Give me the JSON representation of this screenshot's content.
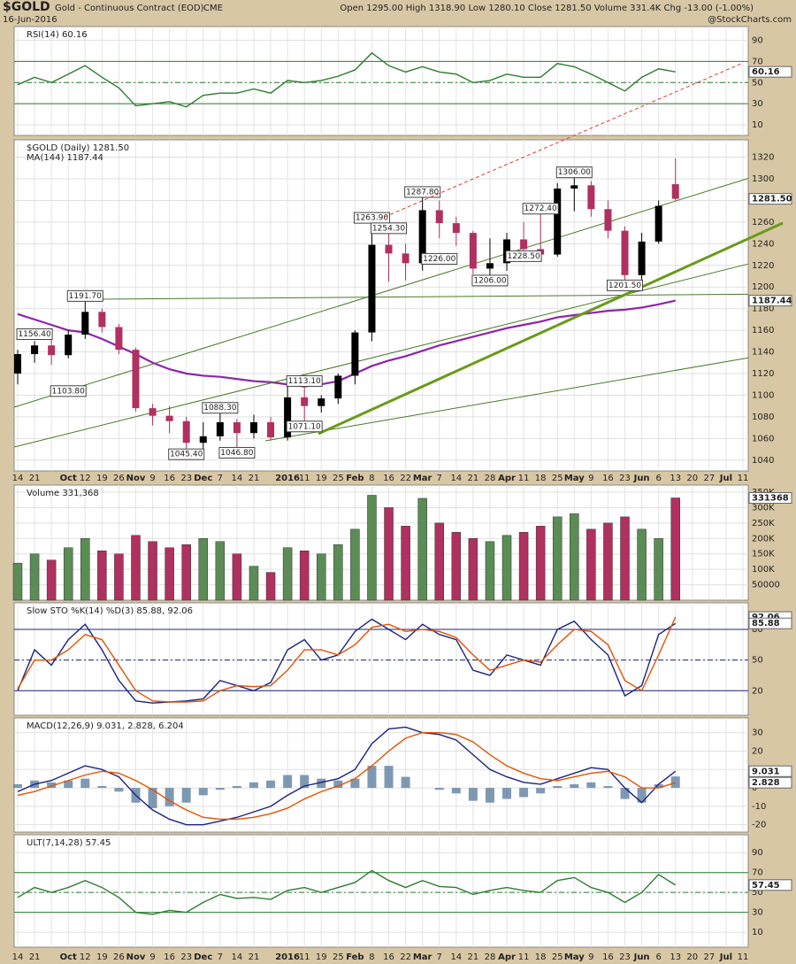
{
  "header": {
    "symbol": "$GOLD",
    "name": "Gold - Continuous Contract (EOD)",
    "exchange": "CME",
    "date": "16-Jun-2016",
    "quote": "Open 1295.00  High 1318.90  Low 1280.10  Close 1281.50  Volume 331.4K  Chg -13.00 (-1.00%)",
    "credit": "@StockCharts.com"
  },
  "categories": [
    "14",
    "21",
    null,
    "Oct",
    "12",
    "19",
    "26",
    "Nov",
    "9",
    "16",
    "23",
    "Dec",
    "7",
    "14",
    "21",
    null,
    "2016",
    "11",
    "19",
    "25",
    "Feb",
    "8",
    "16",
    "22",
    "Mar",
    "7",
    "14",
    "21",
    "28",
    "Apr",
    "11",
    "18",
    "25",
    "May",
    "9",
    "16",
    "23",
    "Jun",
    "6",
    "13",
    "20",
    "27",
    "Jul",
    "11"
  ],
  "chart_data": [
    {
      "type": "line",
      "legend": "RSI(14) 60.16",
      "flag": "60.16",
      "ylim": [
        0,
        103
      ],
      "yticks": [
        90,
        70,
        50,
        30,
        10
      ],
      "reference_lines": [
        70,
        50,
        30
      ],
      "series": [
        {
          "color": "#2e7d32",
          "values": [
            48,
            55,
            50,
            58,
            66,
            55,
            45,
            28,
            30,
            32,
            27,
            38,
            40,
            40,
            44,
            40,
            52,
            50,
            52,
            56,
            62,
            78,
            66,
            60,
            65,
            60,
            58,
            50,
            52,
            58,
            55,
            55,
            68,
            65,
            58,
            50,
            42,
            55,
            63,
            60.16,
            null,
            null,
            null,
            null
          ]
        }
      ]
    },
    {
      "type": "candlestick",
      "legend": "$GOLD (Daily) 1281.50",
      "flag": "1281.50",
      "ylim": [
        1030,
        1336
      ],
      "yticks": [
        1040,
        1060,
        1080,
        1100,
        1120,
        1140,
        1160,
        1180,
        1200,
        1220,
        1240,
        1260,
        1280,
        1300,
        1320
      ],
      "open": [
        1120,
        1138,
        1146,
        1137,
        1156,
        1177,
        1163,
        1142,
        1088,
        1081,
        1076,
        1056,
        1062,
        1075,
        1065,
        1075,
        1061,
        1098,
        1090,
        1097,
        1118,
        1158,
        1239,
        1231,
        1222,
        1271,
        1259,
        1250,
        1217,
        1222,
        1244,
        1235,
        1230,
        1291,
        1294,
        1272,
        1252,
        1211,
        1242,
        1295,
        null,
        null,
        null,
        null
      ],
      "high": [
        1142,
        1150,
        1152,
        1160,
        1191.7,
        1180,
        1166,
        1144,
        1092,
        1090,
        1080,
        1075,
        1088.3,
        1078,
        1082,
        1080,
        1112,
        1113.1,
        1100,
        1120,
        1160,
        1263.9,
        1254.3,
        1240,
        1287.8,
        1280,
        1265,
        1252,
        1245,
        1250,
        1260,
        1272.4,
        1296,
        1306,
        1298,
        1280,
        1256,
        1250,
        1280,
        1318.9,
        null,
        null,
        null,
        null
      ],
      "low": [
        1110,
        1130,
        1128,
        1134,
        1152,
        1158,
        1138,
        1085,
        1072,
        1065,
        1045.4,
        1050,
        1058,
        1046.8,
        1060,
        1058,
        1058,
        1071.1,
        1084,
        1092,
        1110,
        1150,
        1205,
        1206,
        1215,
        1245,
        1238,
        1212,
        1208,
        1215,
        1228.5,
        1226,
        1228,
        1270,
        1265,
        1245,
        1201.5,
        1205,
        1240,
        1280.1,
        null,
        null,
        null,
        null
      ],
      "close": [
        1138,
        1146,
        1137,
        1156,
        1177,
        1163,
        1142,
        1088,
        1081,
        1076,
        1056,
        1062,
        1075,
        1065,
        1075,
        1061,
        1098,
        1090,
        1097,
        1118,
        1158,
        1239,
        1231,
        1222,
        1271,
        1259,
        1250,
        1217,
        1222,
        1244,
        1235,
        1230,
        1291,
        1294,
        1272,
        1252,
        1211,
        1242,
        1275,
        1281.5,
        null,
        null,
        null,
        null
      ],
      "overlay": {
        "name": "MA(144) 1187.44",
        "flag": "1187.44",
        "color": "#8e24aa",
        "values": [
          1175,
          1170,
          1165,
          1160,
          1158,
          1152,
          1145,
          1138,
          1130,
          1124,
          1120,
          1118,
          1117,
          1115,
          1113,
          1112,
          1110,
          1108,
          1110,
          1113,
          1120,
          1127,
          1132,
          1136,
          1141,
          1146,
          1150,
          1154,
          1158,
          1162,
          1165,
          1168,
          1172,
          1174,
          1176,
          1178,
          1179,
          1181,
          1184,
          1187.44,
          null,
          null,
          null,
          null
        ]
      },
      "annotations": [
        {
          "value": 1156.4,
          "label": "1156.40"
        },
        {
          "value": 1103.8,
          "label": "1103.80"
        },
        {
          "value": 1191.7,
          "label": "1191.70"
        },
        {
          "value": 1045.4,
          "label": "1045.40"
        },
        {
          "value": 1088.3,
          "label": "1088.30"
        },
        {
          "value": 1046.8,
          "label": "1046.80"
        },
        {
          "value": 1113.1,
          "label": "1113.10"
        },
        {
          "value": 1071.1,
          "label": "1071.10"
        },
        {
          "value": 1263.9,
          "label": "1263.90"
        },
        {
          "value": 1254.3,
          "label": "1254.30"
        },
        {
          "value": 1287.8,
          "label": "1287.80"
        },
        {
          "value": 1226,
          "label": "1226.00"
        },
        {
          "value": 1206,
          "label": "1206.00"
        },
        {
          "value": 1228.5,
          "label": "1228.50"
        },
        {
          "value": 1272.4,
          "label": "1272.40"
        },
        {
          "value": 1306,
          "label": "1306.00"
        },
        {
          "value": 1201.5,
          "label": "1201.50"
        }
      ]
    },
    {
      "type": "bar",
      "legend": "Volume 331,368",
      "flag": "331368",
      "ylim": [
        0,
        373000
      ],
      "yticks": [
        {
          "value": 50000,
          "label": "50000"
        },
        {
          "value": 100000,
          "label": "100K"
        },
        {
          "value": 150000,
          "label": "150K"
        },
        {
          "value": 200000,
          "label": "200K"
        },
        {
          "value": 250000,
          "label": "250K"
        },
        {
          "value": 300000,
          "label": "300K"
        },
        {
          "value": 350000,
          "label": "350K"
        }
      ],
      "colors": {
        "up": "#5b8c55",
        "down": "#b03060"
      },
      "values": [
        120000,
        150000,
        130000,
        170000,
        200000,
        160000,
        150000,
        210000,
        190000,
        170000,
        180000,
        200000,
        190000,
        150000,
        110000,
        90000,
        170000,
        160000,
        150000,
        180000,
        230000,
        340000,
        300000,
        240000,
        330000,
        250000,
        220000,
        200000,
        190000,
        210000,
        220000,
        240000,
        270000,
        280000,
        230000,
        250000,
        270000,
        230000,
        200000,
        331368,
        null,
        null,
        null,
        null
      ]
    },
    {
      "type": "line",
      "legend": "Slow STO %K(14) %D(3) 85.88, 92.06",
      "flags": [
        "92.06",
        "85.88"
      ],
      "ylim": [
        -4,
        106
      ],
      "yticks": [
        80,
        50,
        20
      ],
      "reference_lines": [
        80,
        50,
        20
      ],
      "series": [
        {
          "color": "#1a237e",
          "values": [
            20,
            60,
            45,
            70,
            85,
            60,
            30,
            10,
            8,
            9,
            10,
            12,
            30,
            25,
            20,
            28,
            60,
            70,
            50,
            55,
            78,
            90,
            80,
            70,
            85,
            75,
            70,
            40,
            35,
            55,
            50,
            45,
            80,
            88,
            70,
            55,
            15,
            25,
            75,
            85.88,
            null,
            null,
            null,
            null
          ]
        },
        {
          "color": "#e65100",
          "values": [
            22,
            50,
            50,
            60,
            75,
            70,
            45,
            20,
            10,
            9,
            9,
            10,
            20,
            25,
            24,
            25,
            40,
            60,
            60,
            55,
            65,
            82,
            85,
            78,
            80,
            78,
            72,
            55,
            40,
            45,
            50,
            48,
            65,
            80,
            78,
            65,
            30,
            20,
            55,
            92.06,
            null,
            null,
            null,
            null
          ]
        }
      ]
    },
    {
      "type": "line",
      "legend": "MACD(12,26,9) 9.031, 2.828, 6.204",
      "flags": [
        "9.031",
        "2.828"
      ],
      "ylim": [
        -24,
        38
      ],
      "yticks": [
        30,
        20,
        10,
        0,
        -10,
        -20
      ],
      "reference_lines": [],
      "series": [
        {
          "type": "bar",
          "color": "#5f7fa0",
          "values": [
            2,
            4,
            3,
            4,
            5,
            1,
            -2,
            -8,
            -11,
            -10,
            -8,
            -4,
            -1,
            1,
            3,
            4,
            7,
            7,
            5,
            4,
            5,
            12,
            12,
            6,
            0,
            -1,
            -3,
            -7,
            -8,
            -6,
            -5,
            -3,
            1,
            2,
            3,
            1,
            -6,
            -8,
            2,
            6.204,
            null,
            null,
            null,
            null
          ]
        },
        {
          "color": "#1a237e",
          "values": [
            -2,
            2,
            4,
            8,
            12,
            10,
            6,
            -4,
            -12,
            -17,
            -20,
            -20,
            -18,
            -16,
            -13,
            -10,
            -4,
            1,
            3,
            5,
            10,
            24,
            32,
            33,
            30,
            29,
            26,
            18,
            10,
            6,
            3,
            2,
            5,
            8,
            11,
            10,
            0,
            -8,
            2,
            9.031,
            null,
            null,
            null,
            null
          ]
        },
        {
          "color": "#e65100",
          "values": [
            -4,
            -2,
            1,
            4,
            7,
            9,
            8,
            4,
            -1,
            -7,
            -12,
            -16,
            -17,
            -17,
            -16,
            -14,
            -11,
            -6,
            -2,
            1,
            5,
            12,
            20,
            27,
            30,
            30,
            29,
            25,
            18,
            12,
            8,
            5,
            4,
            6,
            8,
            9,
            6,
            0,
            0,
            2.828,
            null,
            null,
            null,
            null
          ]
        }
      ]
    },
    {
      "type": "line",
      "legend": "ULT(7,14,28) 57.45",
      "flag": "57.45",
      "ylim": [
        -5,
        108
      ],
      "yticks": [
        90,
        70,
        50,
        30,
        10
      ],
      "reference_lines": [
        70,
        50,
        30
      ],
      "series": [
        {
          "color": "#2e7d32",
          "values": [
            45,
            55,
            50,
            55,
            62,
            55,
            45,
            30,
            28,
            32,
            30,
            40,
            48,
            44,
            45,
            43,
            52,
            55,
            50,
            55,
            60,
            72,
            62,
            55,
            62,
            56,
            55,
            48,
            52,
            55,
            52,
            50,
            62,
            65,
            55,
            50,
            40,
            50,
            68,
            57.45,
            null,
            null,
            null,
            null
          ]
        }
      ]
    }
  ]
}
